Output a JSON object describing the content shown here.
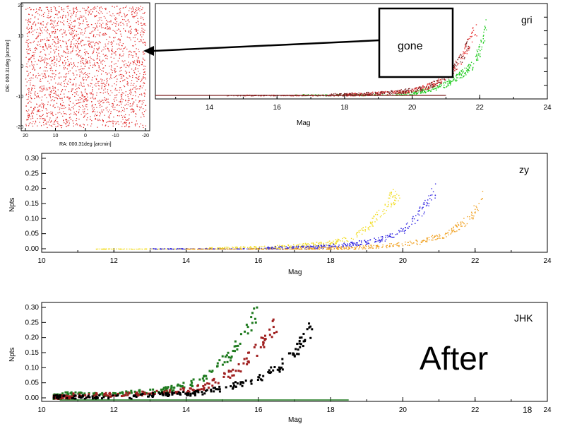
{
  "slide": {
    "callout_label": "gone",
    "after_label": "After",
    "slide_number": "18"
  },
  "chart_data": [
    {
      "id": "gri",
      "type": "scatter",
      "band_label": "gri",
      "xlabel": "Mag",
      "ylabel": "",
      "xlim": [
        10,
        24
      ],
      "ylim": [
        0,
        0.3
      ],
      "xticks": [
        "14",
        "16",
        "18",
        "20",
        "22",
        "24"
      ],
      "yticks": [],
      "series": [
        {
          "color": "#22cc22",
          "points": [
            [
              19.5,
              0.005
            ],
            [
              20.0,
              0.01
            ],
            [
              20.5,
              0.02
            ],
            [
              21.0,
              0.04
            ],
            [
              21.4,
              0.07
            ],
            [
              21.8,
              0.11
            ],
            [
              22.0,
              0.16
            ],
            [
              22.1,
              0.21
            ],
            [
              22.2,
              0.24
            ]
          ]
        },
        {
          "color": "#e83030",
          "points": [
            [
              18.0,
              0.003
            ],
            [
              19.0,
              0.008
            ],
            [
              19.8,
              0.015
            ],
            [
              20.4,
              0.03
            ],
            [
              20.8,
              0.05
            ],
            [
              21.2,
              0.09
            ],
            [
              21.5,
              0.14
            ],
            [
              21.7,
              0.19
            ],
            [
              21.9,
              0.23
            ]
          ]
        },
        {
          "color": "#7a1e1e",
          "points": [
            [
              17.5,
              0.002
            ],
            [
              18.5,
              0.006
            ],
            [
              19.5,
              0.012
            ],
            [
              20.3,
              0.025
            ],
            [
              20.8,
              0.05
            ],
            [
              21.2,
              0.09
            ],
            [
              21.5,
              0.14
            ],
            [
              21.7,
              0.2
            ]
          ]
        }
      ]
    },
    {
      "id": "zy",
      "type": "scatter",
      "band_label": "zy",
      "xlabel": "Mag",
      "ylabel": "Npts",
      "xlim": [
        10,
        24
      ],
      "ylim": [
        0,
        0.3
      ],
      "xticks": [
        "10",
        "12",
        "14",
        "16",
        "18",
        "20",
        "22",
        "24"
      ],
      "yticks": [
        "0.00",
        "0.05",
        "0.10",
        "0.15",
        "0.20",
        "0.25",
        "0.30"
      ],
      "series": [
        {
          "color": "#f2dc20",
          "points": [
            [
              14.5,
              0.001
            ],
            [
              16.0,
              0.004
            ],
            [
              17.0,
              0.01
            ],
            [
              18.0,
              0.02
            ],
            [
              18.6,
              0.04
            ],
            [
              19.0,
              0.07
            ],
            [
              19.3,
              0.11
            ],
            [
              19.6,
              0.16
            ],
            [
              19.9,
              0.19
            ]
          ]
        },
        {
          "color": "#2a1ee0",
          "points": [
            [
              16.0,
              0.002
            ],
            [
              17.5,
              0.006
            ],
            [
              18.5,
              0.015
            ],
            [
              19.5,
              0.035
            ],
            [
              20.0,
              0.06
            ],
            [
              20.4,
              0.11
            ],
            [
              20.7,
              0.16
            ],
            [
              20.9,
              0.2
            ]
          ]
        },
        {
          "color": "#f0a020",
          "points": [
            [
              17.0,
              0.001
            ],
            [
              18.5,
              0.004
            ],
            [
              19.5,
              0.01
            ],
            [
              20.5,
              0.025
            ],
            [
              21.2,
              0.05
            ],
            [
              21.7,
              0.09
            ],
            [
              22.0,
              0.13
            ],
            [
              22.2,
              0.17
            ]
          ]
        }
      ]
    },
    {
      "id": "jhk",
      "type": "scatter",
      "band_label": "JHK",
      "xlabel": "Mag",
      "ylabel": "Npts",
      "xlim": [
        10,
        24
      ],
      "ylim": [
        0,
        0.3
      ],
      "xticks": [
        "10",
        "12",
        "14",
        "16",
        "18",
        "20",
        "22",
        "24"
      ],
      "yticks": [
        "0.00",
        "0.05",
        "0.10",
        "0.15",
        "0.20",
        "0.25",
        "0.30"
      ],
      "series": [
        {
          "color": "#1e7a1e",
          "points": [
            [
              10.5,
              0.015
            ],
            [
              11.5,
              0.015
            ],
            [
              12.5,
              0.02
            ],
            [
              13.2,
              0.025
            ],
            [
              13.8,
              0.04
            ],
            [
              14.3,
              0.06
            ],
            [
              14.8,
              0.1
            ],
            [
              15.2,
              0.15
            ],
            [
              15.5,
              0.2
            ],
            [
              15.8,
              0.26
            ],
            [
              16.0,
              0.28
            ]
          ]
        },
        {
          "color": "#a02020",
          "points": [
            [
              10.8,
              0.012
            ],
            [
              12.0,
              0.014
            ],
            [
              13.0,
              0.018
            ],
            [
              13.8,
              0.025
            ],
            [
              14.5,
              0.04
            ],
            [
              15.0,
              0.07
            ],
            [
              15.5,
              0.11
            ],
            [
              15.9,
              0.16
            ],
            [
              16.2,
              0.21
            ],
            [
              16.5,
              0.26
            ]
          ]
        },
        {
          "color": "#000000",
          "points": [
            [
              12.5,
              0.012
            ],
            [
              13.5,
              0.015
            ],
            [
              14.2,
              0.018
            ],
            [
              14.8,
              0.03
            ],
            [
              15.5,
              0.05
            ],
            [
              16.0,
              0.07
            ],
            [
              16.5,
              0.1
            ],
            [
              16.9,
              0.14
            ],
            [
              17.2,
              0.19
            ],
            [
              17.5,
              0.24
            ]
          ]
        }
      ]
    },
    {
      "id": "inset",
      "type": "scatter",
      "xlabel": "RA: 000.31deg [arcmin]",
      "ylabel": "DE: 000.31deg [arcmin]",
      "xlim": [
        20,
        -20
      ],
      "ylim": [
        -20,
        20
      ],
      "xticks": [
        "20",
        "10",
        "0",
        "-10",
        "-20"
      ],
      "yticks": [
        "-20",
        "-10",
        "0",
        "10",
        "20"
      ],
      "series": [
        {
          "color": "#e02020",
          "density": "uniform"
        }
      ]
    }
  ]
}
